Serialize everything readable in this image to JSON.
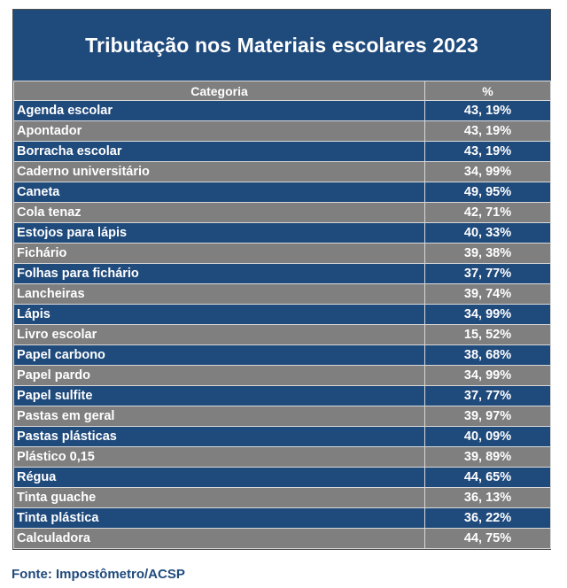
{
  "title": "Tributação nos Materiais escolares 2023",
  "columns": {
    "category": "Categoria",
    "percent": "%"
  },
  "colors": {
    "blue_row": "#1f4a7c",
    "gray_row": "#7f7f7f",
    "source_text": "#1f4a7c"
  },
  "rows": [
    {
      "category": "Agenda escolar",
      "percent": "43, 19%"
    },
    {
      "category": "Apontador",
      "percent": "43, 19%"
    },
    {
      "category": "Borracha escolar",
      "percent": "43, 19%"
    },
    {
      "category": "Caderno universitário",
      "percent": "34, 99%"
    },
    {
      "category": "Caneta",
      "percent": "49, 95%"
    },
    {
      "category": "Cola tenaz",
      "percent": "42, 71%"
    },
    {
      "category": "Estojos para lápis",
      "percent": "40, 33%"
    },
    {
      "category": "Fichário",
      "percent": "39, 38%"
    },
    {
      "category": "Folhas para fichário",
      "percent": "37, 77%"
    },
    {
      "category": "Lancheiras",
      "percent": "39, 74%"
    },
    {
      "category": "Lápis",
      "percent": "34, 99%"
    },
    {
      "category": "Livro escolar",
      "percent": "15, 52%"
    },
    {
      "category": "Papel carbono",
      "percent": "38, 68%"
    },
    {
      "category": "Papel pardo",
      "percent": "34, 99%"
    },
    {
      "category": "Papel sulfite",
      "percent": "37, 77%"
    },
    {
      "category": "Pastas em geral",
      "percent": "39, 97%"
    },
    {
      "category": "Pastas plásticas",
      "percent": "40, 09%"
    },
    {
      "category": "Plástico 0,15",
      "percent": "39, 89%"
    },
    {
      "category": "Régua",
      "percent": "44, 65%"
    },
    {
      "category": "Tinta guache",
      "percent": "36, 13%"
    },
    {
      "category": "Tinta plástica",
      "percent": "36, 22%"
    },
    {
      "category": "Calculadora",
      "percent": "44, 75%"
    }
  ],
  "source": "Fonte: Impostômetro/ACSP"
}
